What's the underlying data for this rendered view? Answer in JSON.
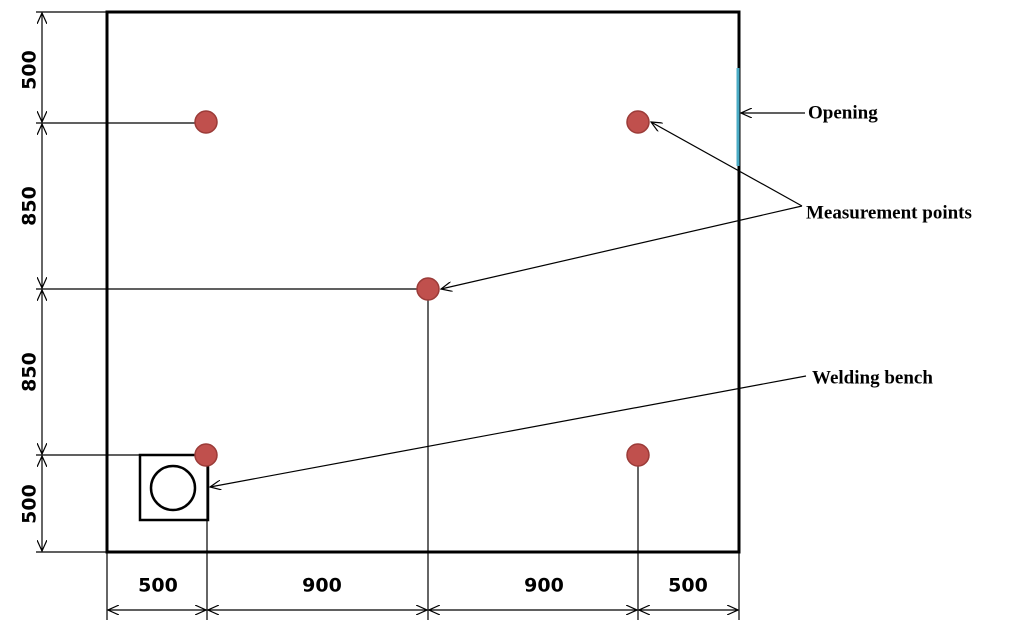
{
  "dimensions": {
    "vertical": [
      500,
      850,
      850,
      500
    ],
    "horizontal": [
      500,
      900,
      900,
      500
    ]
  },
  "labels": {
    "opening": "Opening",
    "measurement_points": "Measurement points",
    "welding_bench": "Welding bench"
  }
}
